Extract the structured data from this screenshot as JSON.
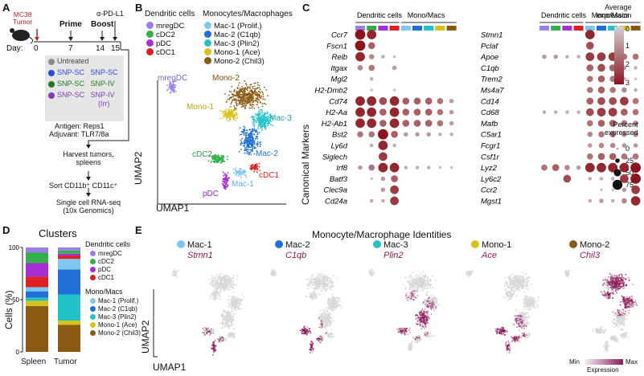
{
  "panels": {
    "A": "A",
    "B": "B",
    "C": "C",
    "D": "D",
    "E": "E"
  },
  "panelA": {
    "tumor_label": "MC38\nTumor",
    "prime": "Prime",
    "boost": "Boost",
    "antibody": "α-PD-L1",
    "day_label": "Day:",
    "days": [
      "0",
      "7",
      "14",
      "15"
    ],
    "groups": [
      {
        "label": "Untreated",
        "color": "#8c8c8c"
      },
      {
        "label": "SNP-SC",
        "label2": "SNP-SC",
        "color": "#2a4bd7"
      },
      {
        "label": "SNP-SC",
        "label2": "SNP-IV",
        "color": "#1e7a1e"
      },
      {
        "label": "SNP-SC",
        "label2": "SNP-IV",
        "label3": "(Irr)",
        "color": "#7a3fb5"
      }
    ],
    "antigen": "Antigen: Reps1",
    "adjuvant": "Adjuvant: TLR7/8a",
    "steps": [
      "Harvest tumors,\nspleens",
      "Sort CD11b⁺ CD11c⁺",
      "Single cell RNA-seq\n(10x Genomics)"
    ]
  },
  "panelB": {
    "dc_title": "Dendritic cells",
    "mono_title": "Monocytes/Macrophages",
    "dc": [
      {
        "label": "mregDC",
        "color": "#9b7fe6"
      },
      {
        "label": "cDC2",
        "color": "#33b04a"
      },
      {
        "label": "pDC",
        "color": "#a52fd0"
      },
      {
        "label": "cDC1",
        "color": "#e02020"
      }
    ],
    "mono": [
      {
        "label": "Mac-1 (Prolif.)",
        "color": "#7ec8ef"
      },
      {
        "label": "Mac-2 (C1qb)",
        "color": "#1f6fd6"
      },
      {
        "label": "Mac-3 (Plin2)",
        "color": "#22c2c8"
      },
      {
        "label": "Mono-1 (Ace)",
        "color": "#d4c31a"
      },
      {
        "label": "Mono-2 (Chil3)",
        "color": "#8a5a14"
      }
    ],
    "cluster_labels": [
      "mregDC",
      "Mono-2",
      "Mono-1",
      "Mac-3",
      "Mac-2",
      "cDC2",
      "cDC1",
      "Mac-1",
      "pDC"
    ],
    "xaxis": "UMAP1",
    "yaxis": "UMAP2"
  },
  "panelC": {
    "ylabel": "Canonical Markers",
    "group_dc": "Dendritic cells",
    "group_mono": "Mono/Macs",
    "genes_left": [
      "Ccr7",
      "Fscn1",
      "Relb",
      "Itgax",
      "Mgl2",
      "H2-Dmb2",
      "Cd74",
      "H2-Aa",
      "H2-Ab1",
      "Bst2",
      "Ly6d",
      "Siglech",
      "Irf8",
      "Batf3",
      "Clec9a",
      "Cd24a"
    ],
    "genes_right": [
      "Stmn1",
      "Pclaf",
      "Apoe",
      "C1qb",
      "Trem2",
      "Ms4a7",
      "Cd14",
      "Cd68",
      "Mafb",
      "C5ar1",
      "Fcgr1",
      "Csf1r",
      "Lyz2",
      "Ly6c2",
      "Ccr2",
      "Mgst1"
    ],
    "avg_title": "Average\nexpression",
    "avg_ticks": [
      "0",
      "1",
      "2",
      "3"
    ],
    "pct_title": "Percent\nexpressed",
    "pct_ticks": [
      "0",
      "25",
      "50",
      "75"
    ]
  },
  "panelD": {
    "title": "Clusters",
    "ylabel": "Cells (%)",
    "xlabels": [
      "Spleen",
      "Tumor"
    ],
    "yticks": [
      "0",
      "50",
      "100"
    ],
    "legend_dc_title": "Dendritic cells",
    "legend_mono_title": "Mono/Macs",
    "legend_dc": [
      "mregDC",
      "cDC2",
      "pDC",
      "cDC1"
    ],
    "legend_mono": [
      "Mac-1 (Prolif.)",
      "Mac-2 (C1qb)",
      "Mac-3 (Plin2)",
      "Mono-1 (Ace)",
      "Mono-2 (Chil3)"
    ]
  },
  "chart_data": {
    "type": "bar",
    "title": "Clusters",
    "categories": [
      "Spleen",
      "Tumor"
    ],
    "ylabel": "Cells (%)",
    "ylim": [
      0,
      100
    ],
    "series": [
      {
        "name": "Mono-2 (Chil3)",
        "color": "#8a5a14",
        "values": [
          44,
          26
        ]
      },
      {
        "name": "Mono-1 (Ace)",
        "color": "#d4c31a",
        "values": [
          5,
          4
        ]
      },
      {
        "name": "Mac-3 (Plin2)",
        "color": "#22c2c8",
        "values": [
          3,
          25
        ]
      },
      {
        "name": "Mac-2 (C1qb)",
        "color": "#1f6fd6",
        "values": [
          6,
          24
        ]
      },
      {
        "name": "Mac-1 (Prolif.)",
        "color": "#7ec8ef",
        "values": [
          4,
          10
        ]
      },
      {
        "name": "cDC1",
        "color": "#e02020",
        "values": [
          10,
          3
        ]
      },
      {
        "name": "pDC",
        "color": "#a52fd0",
        "values": [
          13,
          2
        ]
      },
      {
        "name": "cDC2",
        "color": "#33b04a",
        "values": [
          10,
          3
        ]
      },
      {
        "name": "mregDC",
        "color": "#9b7fe6",
        "values": [
          5,
          3
        ]
      }
    ]
  },
  "panelE": {
    "title": "Monocyte/Macrophage Identities",
    "panels": [
      {
        "name": "Mac-1",
        "gene": "Stmn1",
        "color": "#7ec8ef"
      },
      {
        "name": "Mac-2",
        "gene": "C1qb",
        "color": "#1f6fd6"
      },
      {
        "name": "Mac-3",
        "gene": "Plin2",
        "color": "#22c2c8"
      },
      {
        "name": "Mono-1",
        "gene": "Ace",
        "color": "#d4c31a"
      },
      {
        "name": "Mono-2",
        "gene": "Chil3",
        "color": "#8a5a14"
      }
    ],
    "xaxis": "UMAP1",
    "yaxis": "UMAP2",
    "scale_min": "Min",
    "scale_max": "Max",
    "scale_title": "Expression"
  }
}
